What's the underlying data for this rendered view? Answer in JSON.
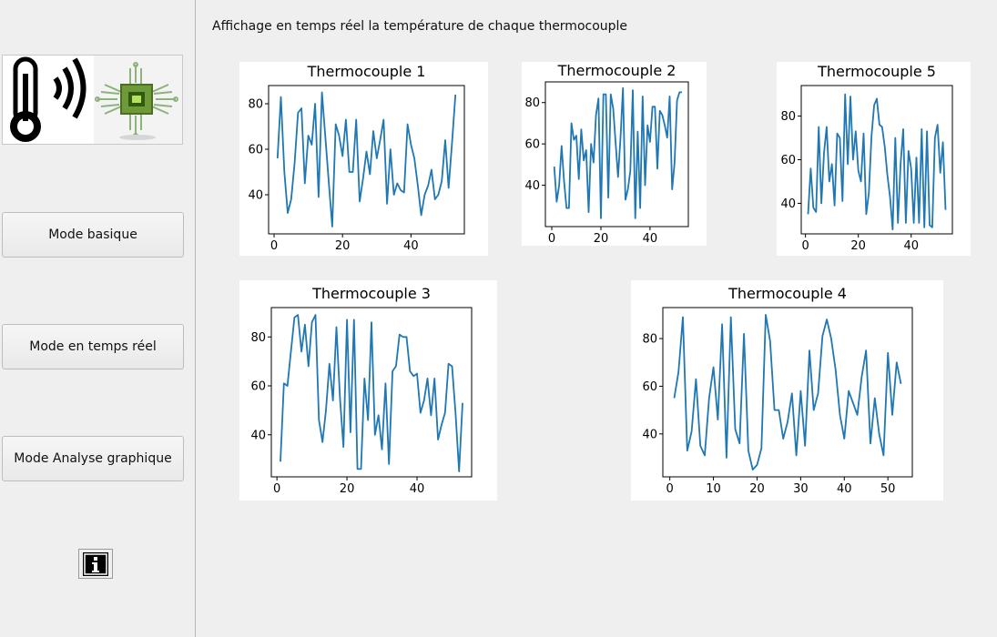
{
  "window": {
    "heading": "Affichage en temps réel la température de chaque thermocouple"
  },
  "sidebar": {
    "logo_icons": [
      "thermometer-icon",
      "wireless-signal-icon",
      "circuit-chip-icon"
    ],
    "buttons": {
      "basic": "Mode basique",
      "realtime": "Mode en temps réel",
      "analysis": "Mode Analyse graphique"
    },
    "info_icon": "info-icon"
  },
  "colors": {
    "line": "#1f77b4",
    "background": "#efefef"
  },
  "chart_data": [
    {
      "type": "line",
      "title": "Thermocouple 1",
      "xlim": [
        -1.6,
        55.6
      ],
      "ylim": [
        22.8,
        88
      ],
      "xticks": [
        0,
        20,
        40
      ],
      "yticks": [
        40,
        60,
        80
      ],
      "x": [
        1,
        2,
        3,
        4,
        5,
        6,
        7,
        8,
        9,
        10,
        11,
        12,
        13,
        14,
        15,
        16,
        17,
        18,
        19,
        20,
        21,
        22,
        23,
        24,
        25,
        26,
        27,
        28,
        29,
        30,
        31,
        32,
        33,
        34,
        35,
        36,
        37,
        38,
        39,
        40,
        41,
        42,
        43,
        44,
        45,
        46,
        47,
        48,
        49,
        50,
        51,
        52,
        53
      ],
      "series": [
        {
          "values": [
            56,
            83,
            50,
            32,
            38,
            54,
            76,
            78,
            45,
            66,
            62,
            80,
            39,
            85,
            65,
            45,
            26,
            71,
            66,
            57,
            73,
            50,
            50,
            73,
            37,
            47,
            59,
            49,
            68,
            56,
            64,
            73,
            36,
            60,
            40,
            45,
            42,
            41,
            71,
            62,
            56,
            44,
            31,
            40,
            44,
            51,
            38,
            40,
            46,
            64,
            43,
            63,
            84
          ]
        }
      ]
    },
    {
      "type": "line",
      "title": "Thermocouple 2",
      "xlim": [
        -2.6,
        55.6
      ],
      "ylim": [
        20,
        90
      ],
      "xticks": [
        0,
        20,
        40
      ],
      "yticks": [
        40,
        60,
        80
      ],
      "x": [
        1,
        2,
        3,
        4,
        5,
        6,
        7,
        8,
        9,
        10,
        11,
        12,
        13,
        14,
        15,
        16,
        17,
        18,
        19,
        20,
        21,
        22,
        23,
        24,
        25,
        26,
        27,
        28,
        29,
        30,
        31,
        32,
        33,
        34,
        35,
        36,
        37,
        38,
        39,
        40,
        41,
        42,
        43,
        44,
        45,
        46,
        47,
        48,
        49,
        50,
        51,
        52,
        53
      ],
      "series": [
        {
          "values": [
            49,
            32,
            40,
            59,
            42,
            29,
            29,
            70,
            62,
            64,
            43,
            67,
            52,
            57,
            27,
            60,
            51,
            74,
            82,
            24,
            84,
            84,
            34,
            84,
            77,
            60,
            44,
            63,
            87,
            33,
            38,
            47,
            86,
            24,
            66,
            29,
            83,
            40,
            69,
            61,
            78,
            78,
            48,
            76,
            74,
            69,
            63,
            83,
            38,
            51,
            81,
            85,
            85
          ]
        }
      ]
    },
    {
      "type": "line",
      "title": "Thermocouple 5",
      "xlim": [
        -1.6,
        55.6
      ],
      "ylim": [
        26,
        94
      ],
      "xticks": [
        0,
        20,
        40
      ],
      "yticks": [
        40,
        60,
        80
      ],
      "x": [
        1,
        2,
        3,
        4,
        5,
        6,
        7,
        8,
        9,
        10,
        11,
        12,
        13,
        14,
        15,
        16,
        17,
        18,
        19,
        20,
        21,
        22,
        23,
        24,
        25,
        26,
        27,
        28,
        29,
        30,
        31,
        32,
        33,
        34,
        35,
        36,
        37,
        38,
        39,
        40,
        41,
        42,
        43,
        44,
        45,
        46,
        47,
        48,
        49,
        50,
        51,
        52,
        53
      ],
      "series": [
        {
          "values": [
            35,
            56,
            38,
            36,
            75,
            40,
            63,
            75,
            50,
            58,
            39,
            72,
            70,
            41,
            90,
            58,
            89,
            60,
            73,
            55,
            50,
            72,
            35,
            45,
            71,
            85,
            88,
            76,
            75,
            66,
            53,
            43,
            28,
            70,
            31,
            58,
            74,
            31,
            64,
            56,
            31,
            61,
            31,
            74,
            29,
            73,
            30,
            29,
            70,
            76,
            54,
            68,
            37
          ]
        }
      ]
    },
    {
      "type": "line",
      "title": "Thermocouple 3",
      "xlim": [
        -1.6,
        55.6
      ],
      "ylim": [
        22.8,
        92
      ],
      "xticks": [
        0,
        20,
        40
      ],
      "yticks": [
        40,
        60,
        80
      ],
      "x": [
        1,
        2,
        3,
        4,
        5,
        6,
        7,
        8,
        9,
        10,
        11,
        12,
        13,
        14,
        15,
        16,
        17,
        18,
        19,
        20,
        21,
        22,
        23,
        24,
        25,
        26,
        27,
        28,
        29,
        30,
        31,
        32,
        33,
        34,
        35,
        36,
        37,
        38,
        39,
        40,
        41,
        42,
        43,
        44,
        45,
        46,
        47,
        48,
        49,
        50,
        51,
        52,
        53
      ],
      "series": [
        {
          "values": [
            29,
            61,
            60,
            74,
            88,
            89,
            74,
            85,
            68,
            86,
            89,
            46,
            37,
            50,
            69,
            54,
            84,
            55,
            35,
            87,
            41,
            87,
            26,
            26,
            63,
            46,
            86,
            40,
            48,
            34,
            61,
            28,
            66,
            68,
            81,
            80,
            80,
            66,
            64,
            65,
            49,
            54,
            63,
            48,
            63,
            38,
            44,
            49,
            69,
            68,
            49,
            25,
            53
          ]
        }
      ]
    },
    {
      "type": "line",
      "title": "Thermocouple 4",
      "xlim": [
        -1.6,
        55.6
      ],
      "ylim": [
        22,
        93
      ],
      "xticks": [
        0,
        10,
        20,
        30,
        40,
        50
      ],
      "yticks": [
        40,
        60,
        80
      ],
      "x": [
        1,
        2,
        3,
        4,
        5,
        6,
        7,
        8,
        9,
        10,
        11,
        12,
        13,
        14,
        15,
        16,
        17,
        18,
        19,
        20,
        21,
        22,
        23,
        24,
        25,
        26,
        27,
        28,
        29,
        30,
        31,
        32,
        33,
        34,
        35,
        36,
        37,
        38,
        39,
        40,
        41,
        42,
        43,
        44,
        45,
        46,
        47,
        48,
        49,
        50,
        51,
        52,
        53
      ],
      "series": [
        {
          "values": [
            55,
            66,
            89,
            33,
            41,
            63,
            35,
            31,
            55,
            68,
            46,
            86,
            30,
            89,
            42,
            36,
            82,
            33,
            25,
            27,
            34,
            90,
            79,
            50,
            50,
            38,
            45,
            57,
            31,
            58,
            35,
            75,
            50,
            57,
            81,
            88,
            80,
            67,
            48,
            38,
            58,
            53,
            48,
            64,
            75,
            36,
            55,
            40,
            31,
            74,
            48,
            70,
            61
          ]
        }
      ]
    }
  ]
}
